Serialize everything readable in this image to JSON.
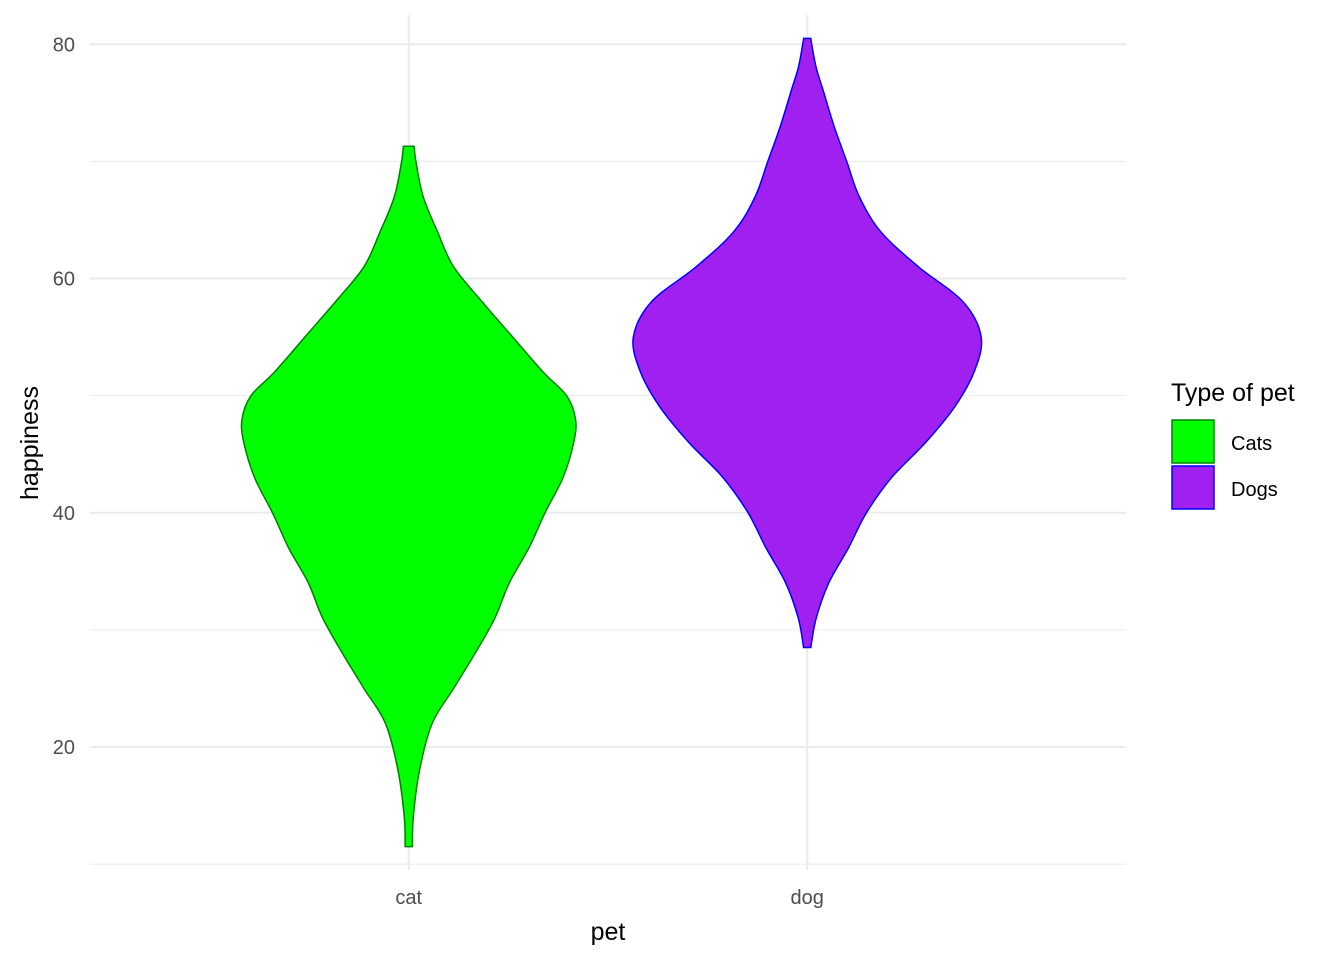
{
  "chart_data": {
    "type": "violin",
    "title": "",
    "xlabel": "pet",
    "ylabel": "happiness",
    "categories": [
      "cat",
      "dog"
    ],
    "ylim": [
      9.5,
      82.5
    ],
    "yticks": [
      20,
      40,
      60,
      80
    ],
    "grid": true,
    "legend": {
      "title": "Type of pet",
      "position": "right",
      "entries": [
        {
          "label": "Cats",
          "fill": "#00ff00",
          "stroke": "#008000"
        },
        {
          "label": "Dogs",
          "fill": "#a020f0",
          "stroke": "#0000ff"
        }
      ]
    },
    "series": [
      {
        "category": "cat",
        "fill": "#00ff00",
        "stroke": "#008000",
        "density": [
          {
            "y": 11.5,
            "w": 0.02
          },
          {
            "y": 14,
            "w": 0.025
          },
          {
            "y": 18,
            "w": 0.06
          },
          {
            "y": 22,
            "w": 0.13
          },
          {
            "y": 25,
            "w": 0.25
          },
          {
            "y": 28,
            "w": 0.37
          },
          {
            "y": 31,
            "w": 0.48
          },
          {
            "y": 34,
            "w": 0.56
          },
          {
            "y": 37,
            "w": 0.67
          },
          {
            "y": 40,
            "w": 0.76
          },
          {
            "y": 43,
            "w": 0.86
          },
          {
            "y": 46,
            "w": 0.92
          },
          {
            "y": 48,
            "w": 0.93
          },
          {
            "y": 50,
            "w": 0.88
          },
          {
            "y": 52,
            "w": 0.75
          },
          {
            "y": 55,
            "w": 0.58
          },
          {
            "y": 58,
            "w": 0.41
          },
          {
            "y": 61,
            "w": 0.25
          },
          {
            "y": 64,
            "w": 0.16
          },
          {
            "y": 67,
            "w": 0.08
          },
          {
            "y": 70,
            "w": 0.04
          },
          {
            "y": 71.3,
            "w": 0.03
          }
        ]
      },
      {
        "category": "dog",
        "fill": "#a020f0",
        "stroke": "#0000ff",
        "density": [
          {
            "y": 28.5,
            "w": 0.02
          },
          {
            "y": 31,
            "w": 0.05
          },
          {
            "y": 34,
            "w": 0.12
          },
          {
            "y": 37,
            "w": 0.23
          },
          {
            "y": 40,
            "w": 0.33
          },
          {
            "y": 43,
            "w": 0.47
          },
          {
            "y": 46,
            "w": 0.66
          },
          {
            "y": 49,
            "w": 0.82
          },
          {
            "y": 52,
            "w": 0.93
          },
          {
            "y": 55,
            "w": 0.97
          },
          {
            "y": 58,
            "w": 0.87
          },
          {
            "y": 61,
            "w": 0.62
          },
          {
            "y": 64,
            "w": 0.41
          },
          {
            "y": 67,
            "w": 0.29
          },
          {
            "y": 70,
            "w": 0.22
          },
          {
            "y": 73,
            "w": 0.15
          },
          {
            "y": 76,
            "w": 0.09
          },
          {
            "y": 78,
            "w": 0.05
          },
          {
            "y": 80,
            "w": 0.025
          },
          {
            "y": 80.5,
            "w": 0.02
          }
        ]
      }
    ]
  }
}
